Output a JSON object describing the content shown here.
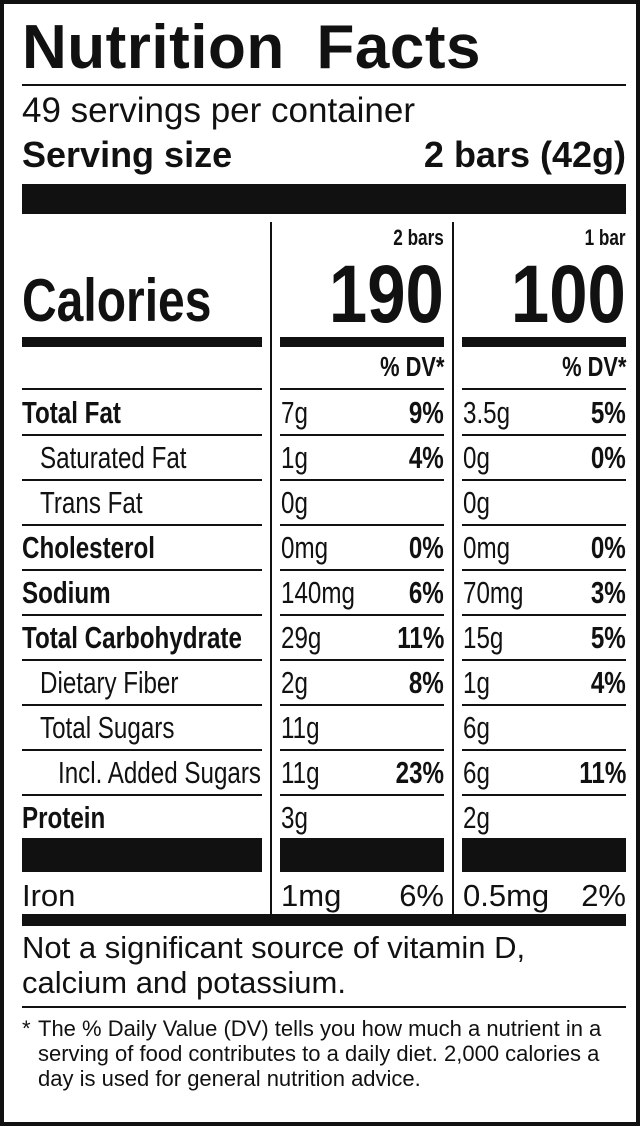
{
  "title": "Nutrition Facts",
  "servings_per_container": "49 servings per container",
  "serving_size": {
    "label": "Serving size",
    "value": "2 bars (42g)"
  },
  "columns": [
    {
      "header": "2 bars",
      "calories": "190",
      "dv_header": "% DV*"
    },
    {
      "header": "1 bar",
      "calories": "100",
      "dv_header": "% DV*"
    }
  ],
  "calories_label": "Calories",
  "nutrients": [
    {
      "name": "Total Fat",
      "bold": true,
      "indent": 0,
      "col1": {
        "amount": "7g",
        "dv": "9%"
      },
      "col2": {
        "amount": "3.5g",
        "dv": "5%"
      }
    },
    {
      "name": "Saturated Fat",
      "bold": false,
      "indent": 1,
      "col1": {
        "amount": "1g",
        "dv": "4%"
      },
      "col2": {
        "amount": "0g",
        "dv": "0%"
      }
    },
    {
      "name": "Trans Fat",
      "bold": false,
      "indent": 1,
      "col1": {
        "amount": "0g",
        "dv": ""
      },
      "col2": {
        "amount": "0g",
        "dv": ""
      }
    },
    {
      "name": "Cholesterol",
      "bold": true,
      "indent": 0,
      "col1": {
        "amount": "0mg",
        "dv": "0%"
      },
      "col2": {
        "amount": "0mg",
        "dv": "0%"
      }
    },
    {
      "name": "Sodium",
      "bold": true,
      "indent": 0,
      "col1": {
        "amount": "140mg",
        "dv": "6%"
      },
      "col2": {
        "amount": "70mg",
        "dv": "3%"
      }
    },
    {
      "name": "Total Carbohydrate",
      "bold": true,
      "indent": 0,
      "col1": {
        "amount": "29g",
        "dv": "11%"
      },
      "col2": {
        "amount": "15g",
        "dv": "5%"
      }
    },
    {
      "name": "Dietary Fiber",
      "bold": false,
      "indent": 1,
      "col1": {
        "amount": "2g",
        "dv": "8%"
      },
      "col2": {
        "amount": "1g",
        "dv": "4%"
      }
    },
    {
      "name": "Total Sugars",
      "bold": false,
      "indent": 1,
      "col1": {
        "amount": "11g",
        "dv": ""
      },
      "col2": {
        "amount": "6g",
        "dv": ""
      }
    },
    {
      "name": "Incl. Added Sugars",
      "bold": false,
      "indent": 2,
      "col1": {
        "amount": "11g",
        "dv": "23%"
      },
      "col2": {
        "amount": "6g",
        "dv": "11%"
      }
    },
    {
      "name": "Protein",
      "bold": true,
      "indent": 0,
      "col1": {
        "amount": "3g",
        "dv": ""
      },
      "col2": {
        "amount": "2g",
        "dv": ""
      }
    }
  ],
  "iron": {
    "name": "Iron",
    "col1": {
      "amount": "1mg",
      "dv": "6%"
    },
    "col2": {
      "amount": "0.5mg",
      "dv": "2%"
    }
  },
  "not_significant": "Not a significant source of vitamin D, calcium and potassium.",
  "footnote": {
    "marker": "*",
    "text": "The % Daily Value (DV) tells you how much a nutrient in a serving of food contributes to a daily diet. 2,000 calories a day is used for general nutrition advice."
  }
}
